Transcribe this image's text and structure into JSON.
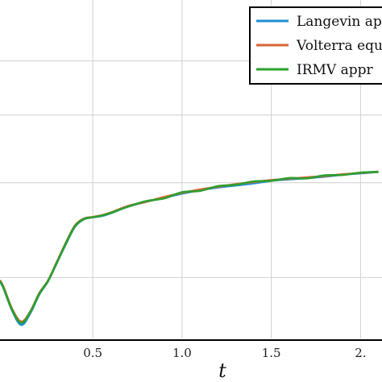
{
  "chart_data": {
    "type": "line",
    "xlabel": "t",
    "ylabel": "",
    "xlim": [
      -0.02,
      2.12
    ],
    "ylim": [
      0.0,
      1.0
    ],
    "x_ticks": [
      {
        "value": 0.5,
        "label": "0.5"
      },
      {
        "value": 1.0,
        "label": "1.0"
      },
      {
        "value": 1.5,
        "label": "1.5"
      },
      {
        "value": 2.0,
        "label": "2."
      }
    ],
    "y_gridlines": [
      0.18,
      0.46,
      0.66,
      0.82
    ],
    "grid": true,
    "legend": {
      "placement": "top-right",
      "entries": [
        {
          "label": "Langevin ap",
          "color": "#1f8fd6"
        },
        {
          "label": "Volterra equ",
          "color": "#d9643a"
        },
        {
          "label": "IRMV appr",
          "color": "#2ca02c"
        }
      ]
    },
    "series": [
      {
        "label": "Langevin ap",
        "color": "#1f8fd6",
        "x": [
          -0.02,
          0.0,
          0.05,
          0.1,
          0.15,
          0.2,
          0.25,
          0.3,
          0.35,
          0.4,
          0.45,
          0.5,
          0.55,
          0.6,
          0.7,
          0.8,
          0.9,
          1.0,
          1.1,
          1.2,
          1.3,
          1.4,
          1.5,
          1.6,
          1.7,
          1.8,
          1.9,
          2.0,
          2.1
        ],
        "y": [
          0.168,
          0.148,
          0.08,
          0.04,
          0.075,
          0.13,
          0.17,
          0.225,
          0.28,
          0.33,
          0.352,
          0.358,
          0.362,
          0.37,
          0.39,
          0.404,
          0.416,
          0.428,
          0.438,
          0.446,
          0.452,
          0.458,
          0.466,
          0.47,
          0.474,
          0.478,
          0.484,
          0.488,
          0.492
        ]
      },
      {
        "label": "Volterra equ",
        "color": "#d9643a",
        "x": [
          -0.02,
          0.0,
          0.05,
          0.1,
          0.15,
          0.2,
          0.25,
          0.3,
          0.35,
          0.4,
          0.45,
          0.5,
          0.55,
          0.6,
          0.7,
          0.8,
          0.9,
          1.0,
          1.1,
          1.2,
          1.3,
          1.4,
          1.5,
          1.6,
          1.7,
          1.8,
          1.9,
          2.0,
          2.1
        ],
        "y": [
          0.172,
          0.152,
          0.085,
          0.05,
          0.08,
          0.134,
          0.172,
          0.228,
          0.284,
          0.334,
          0.354,
          0.359,
          0.364,
          0.372,
          0.392,
          0.404,
          0.418,
          0.43,
          0.44,
          0.448,
          0.456,
          0.462,
          0.468,
          0.472,
          0.476,
          0.48,
          0.485,
          0.489,
          0.493
        ]
      },
      {
        "label": "IRMV appr",
        "color": "#2ca02c",
        "x": [
          -0.02,
          0.0,
          0.05,
          0.1,
          0.15,
          0.2,
          0.25,
          0.3,
          0.35,
          0.4,
          0.45,
          0.5,
          0.55,
          0.6,
          0.7,
          0.8,
          0.9,
          1.0,
          1.1,
          1.2,
          1.3,
          1.4,
          1.5,
          1.6,
          1.7,
          1.8,
          1.9,
          2.0,
          2.1
        ],
        "y": [
          0.17,
          0.15,
          0.082,
          0.046,
          0.078,
          0.132,
          0.171,
          0.226,
          0.282,
          0.332,
          0.353,
          0.358,
          0.363,
          0.371,
          0.39,
          0.406,
          0.414,
          0.432,
          0.436,
          0.45,
          0.454,
          0.464,
          0.466,
          0.474,
          0.473,
          0.482,
          0.483,
          0.49,
          0.492
        ]
      }
    ]
  }
}
